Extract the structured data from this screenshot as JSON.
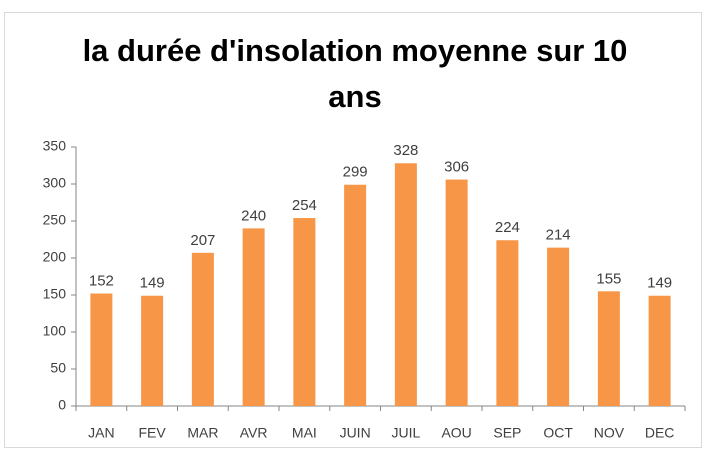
{
  "chart_data": {
    "type": "bar",
    "title": "la durée d'insolation moyenne sur 10 ans",
    "categories": [
      "JAN",
      "FEV",
      "MAR",
      "AVR",
      "MAI",
      "JUIN",
      "JUIL",
      "AOU",
      "SEP",
      "OCT",
      "NOV",
      "DEC"
    ],
    "values": [
      152,
      149,
      207,
      240,
      254,
      299,
      328,
      306,
      224,
      214,
      155,
      149
    ],
    "color": "#f79646",
    "ylim": [
      0,
      350
    ],
    "yticks": [
      0,
      50,
      100,
      150,
      200,
      250,
      300,
      350
    ],
    "grid": false
  }
}
